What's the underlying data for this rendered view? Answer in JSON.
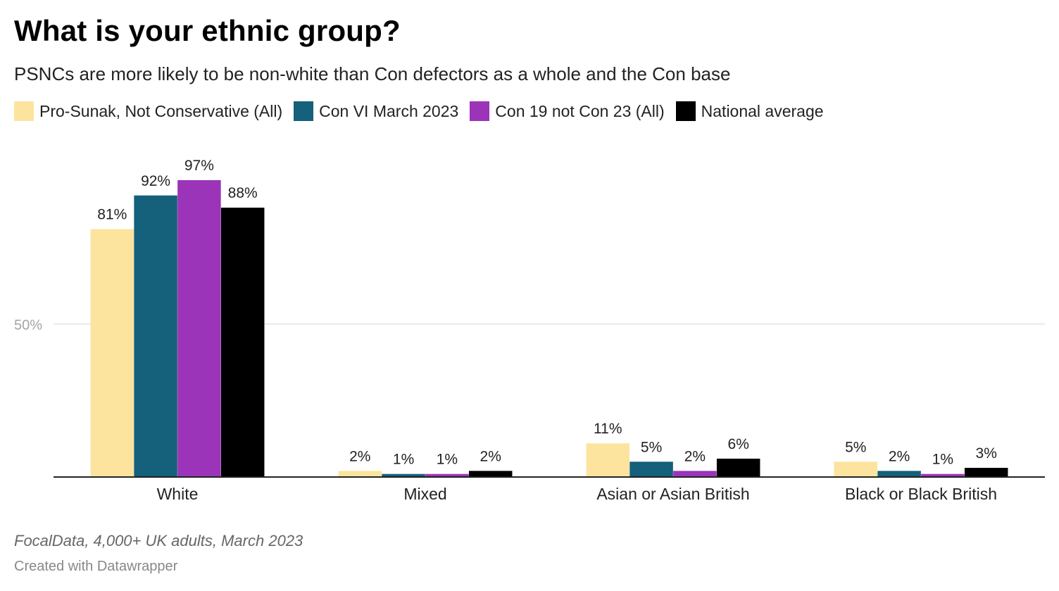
{
  "header": {
    "title": "What is your ethnic group?",
    "subtitle": "PSNCs are more likely to be non-white than Con defectors as a whole and the Con base"
  },
  "footer": {
    "source": "FocalData, 4,000+ UK adults, March 2023",
    "credit": "Created with Datawrapper"
  },
  "chart_data": {
    "type": "bar",
    "title": "What is your ethnic group?",
    "subtitle": "PSNCs are more likely to be non-white than Con defectors as a whole and the Con base",
    "categories": [
      "White",
      "Mixed",
      "Asian or Asian British",
      "Black or Black British"
    ],
    "series": [
      {
        "name": "Pro-Sunak, Not Conservative (All)",
        "color": "#fde49e",
        "values": [
          81,
          2,
          11,
          5
        ],
        "labels": [
          "81%",
          "2%",
          "11%",
          "5%"
        ]
      },
      {
        "name": "Con VI March 2023",
        "color": "#15607a",
        "values": [
          92,
          1,
          5,
          2
        ],
        "labels": [
          "92%",
          "1%",
          "5%",
          "2%"
        ]
      },
      {
        "name": "Con 19 not Con 23 (All)",
        "color": "#9b34b8",
        "values": [
          97,
          1,
          2,
          1
        ],
        "labels": [
          "97%",
          "1%",
          "2%",
          "1%"
        ]
      },
      {
        "name": "National average",
        "color": "#000000",
        "values": [
          88,
          2,
          6,
          3
        ],
        "labels": [
          "88%",
          "2%",
          "6%",
          "3%"
        ]
      }
    ],
    "y_ticks": [
      {
        "value": 50,
        "label": "50%"
      }
    ],
    "ylim": [
      0,
      100
    ],
    "xlabel": "",
    "ylabel": "",
    "legend": "top",
    "grid": true
  }
}
